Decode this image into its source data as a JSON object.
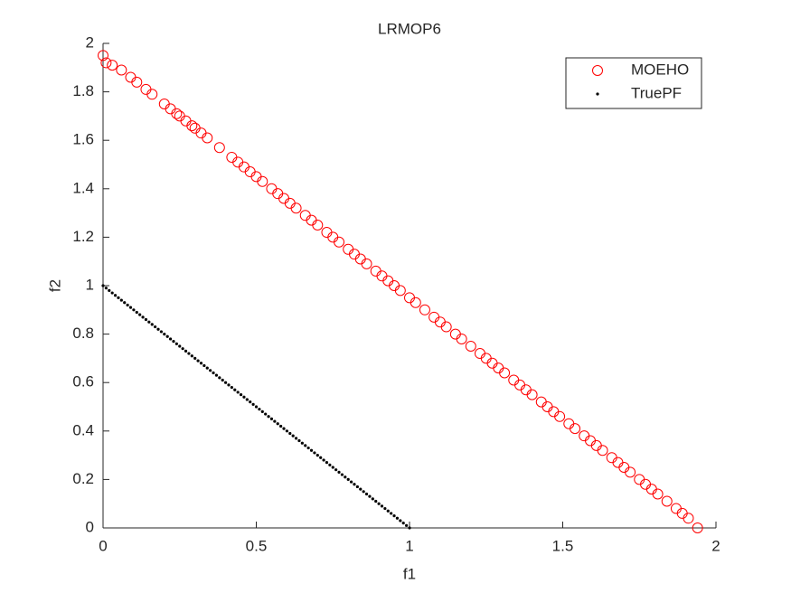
{
  "chart_data": {
    "type": "scatter",
    "title": "LRMOP6",
    "x_label": "f1",
    "y_label": "f2",
    "xlim": [
      0,
      2
    ],
    "ylim": [
      0,
      2
    ],
    "xticks": [
      0,
      0.5,
      1,
      1.5,
      2
    ],
    "yticks": [
      0,
      0.2,
      0.4,
      0.6,
      0.8,
      1,
      1.2,
      1.4,
      1.6,
      1.8,
      2
    ],
    "legend": "northeast",
    "series": [
      {
        "name": "MOEHO",
        "color": "#ff0000",
        "marker": "circle",
        "x": [
          0,
          0.01,
          0.03,
          0.06,
          0.09,
          0.11,
          0.14,
          0.16,
          0.2,
          0.22,
          0.24,
          0.25,
          0.27,
          0.29,
          0.3,
          0.32,
          0.34,
          0.38,
          0.42,
          0.44,
          0.46,
          0.48,
          0.5,
          0.52,
          0.55,
          0.57,
          0.59,
          0.61,
          0.63,
          0.66,
          0.68,
          0.7,
          0.73,
          0.75,
          0.77,
          0.8,
          0.82,
          0.84,
          0.86,
          0.89,
          0.91,
          0.93,
          0.95,
          0.97,
          1.0,
          1.02,
          1.05,
          1.08,
          1.1,
          1.12,
          1.15,
          1.17,
          1.2,
          1.23,
          1.25,
          1.27,
          1.29,
          1.31,
          1.34,
          1.36,
          1.38,
          1.4,
          1.43,
          1.45,
          1.47,
          1.49,
          1.52,
          1.54,
          1.57,
          1.59,
          1.61,
          1.63,
          1.66,
          1.68,
          1.7,
          1.72,
          1.75,
          1.77,
          1.79,
          1.81,
          1.84,
          1.87,
          1.89,
          1.91,
          1.94
        ],
        "y": [
          1.95,
          1.92,
          1.91,
          1.89,
          1.86,
          1.84,
          1.81,
          1.79,
          1.75,
          1.73,
          1.71,
          1.7,
          1.68,
          1.66,
          1.65,
          1.63,
          1.61,
          1.57,
          1.53,
          1.51,
          1.49,
          1.47,
          1.45,
          1.43,
          1.4,
          1.38,
          1.36,
          1.34,
          1.32,
          1.29,
          1.27,
          1.25,
          1.22,
          1.2,
          1.18,
          1.15,
          1.13,
          1.11,
          1.09,
          1.06,
          1.04,
          1.02,
          1.0,
          0.98,
          0.95,
          0.93,
          0.9,
          0.87,
          0.85,
          0.83,
          0.8,
          0.78,
          0.75,
          0.72,
          0.7,
          0.68,
          0.66,
          0.64,
          0.61,
          0.59,
          0.57,
          0.55,
          0.52,
          0.5,
          0.48,
          0.46,
          0.43,
          0.41,
          0.38,
          0.36,
          0.34,
          0.32,
          0.29,
          0.27,
          0.25,
          0.23,
          0.2,
          0.18,
          0.16,
          0.14,
          0.11,
          0.08,
          0.06,
          0.04,
          0
        ]
      },
      {
        "name": "TruePF",
        "color": "#000000",
        "marker": "dot",
        "x": [
          0,
          0.01,
          0.02,
          0.03,
          0.04,
          0.05,
          0.06,
          0.07,
          0.08,
          0.09,
          0.1,
          0.11,
          0.12,
          0.13,
          0.14,
          0.15,
          0.16,
          0.17,
          0.18,
          0.19,
          0.2,
          0.21,
          0.22,
          0.23,
          0.24,
          0.25,
          0.26,
          0.27,
          0.28,
          0.29,
          0.3,
          0.31,
          0.32,
          0.33,
          0.34,
          0.35,
          0.36,
          0.37,
          0.38,
          0.39,
          0.4,
          0.41,
          0.42,
          0.43,
          0.44,
          0.45,
          0.46,
          0.47,
          0.48,
          0.49,
          0.5,
          0.51,
          0.52,
          0.53,
          0.54,
          0.55,
          0.56,
          0.57,
          0.58,
          0.59,
          0.6,
          0.61,
          0.62,
          0.63,
          0.64,
          0.65,
          0.66,
          0.67,
          0.68,
          0.69,
          0.7,
          0.71,
          0.72,
          0.73,
          0.74,
          0.75,
          0.76,
          0.77,
          0.78,
          0.79,
          0.8,
          0.81,
          0.82,
          0.83,
          0.84,
          0.85,
          0.86,
          0.87,
          0.88,
          0.89,
          0.9,
          0.91,
          0.92,
          0.93,
          0.94,
          0.95,
          0.96,
          0.97,
          0.98,
          0.99,
          1
        ],
        "y": [
          1,
          0.99,
          0.98,
          0.97,
          0.96,
          0.95,
          0.94,
          0.93,
          0.92,
          0.91,
          0.9,
          0.89,
          0.88,
          0.87,
          0.86,
          0.85,
          0.84,
          0.83,
          0.82,
          0.81,
          0.8,
          0.79,
          0.78,
          0.77,
          0.76,
          0.75,
          0.74,
          0.73,
          0.72,
          0.71,
          0.7,
          0.69,
          0.68,
          0.67,
          0.66,
          0.65,
          0.64,
          0.63,
          0.62,
          0.61,
          0.6,
          0.59,
          0.58,
          0.57,
          0.56,
          0.55,
          0.54,
          0.53,
          0.52,
          0.51,
          0.5,
          0.49,
          0.48,
          0.47,
          0.46,
          0.45,
          0.44,
          0.43,
          0.42,
          0.41,
          0.4,
          0.39,
          0.38,
          0.37,
          0.36,
          0.35,
          0.34,
          0.33,
          0.32,
          0.31,
          0.3,
          0.29,
          0.28,
          0.27,
          0.26,
          0.25,
          0.24,
          0.23,
          0.22,
          0.21,
          0.2,
          0.19,
          0.18,
          0.17,
          0.16,
          0.15,
          0.14,
          0.13,
          0.12,
          0.11,
          0.1,
          0.09,
          0.08,
          0.07,
          0.06,
          0.05,
          0.04,
          0.03,
          0.02,
          0.01,
          0
        ]
      }
    ]
  }
}
